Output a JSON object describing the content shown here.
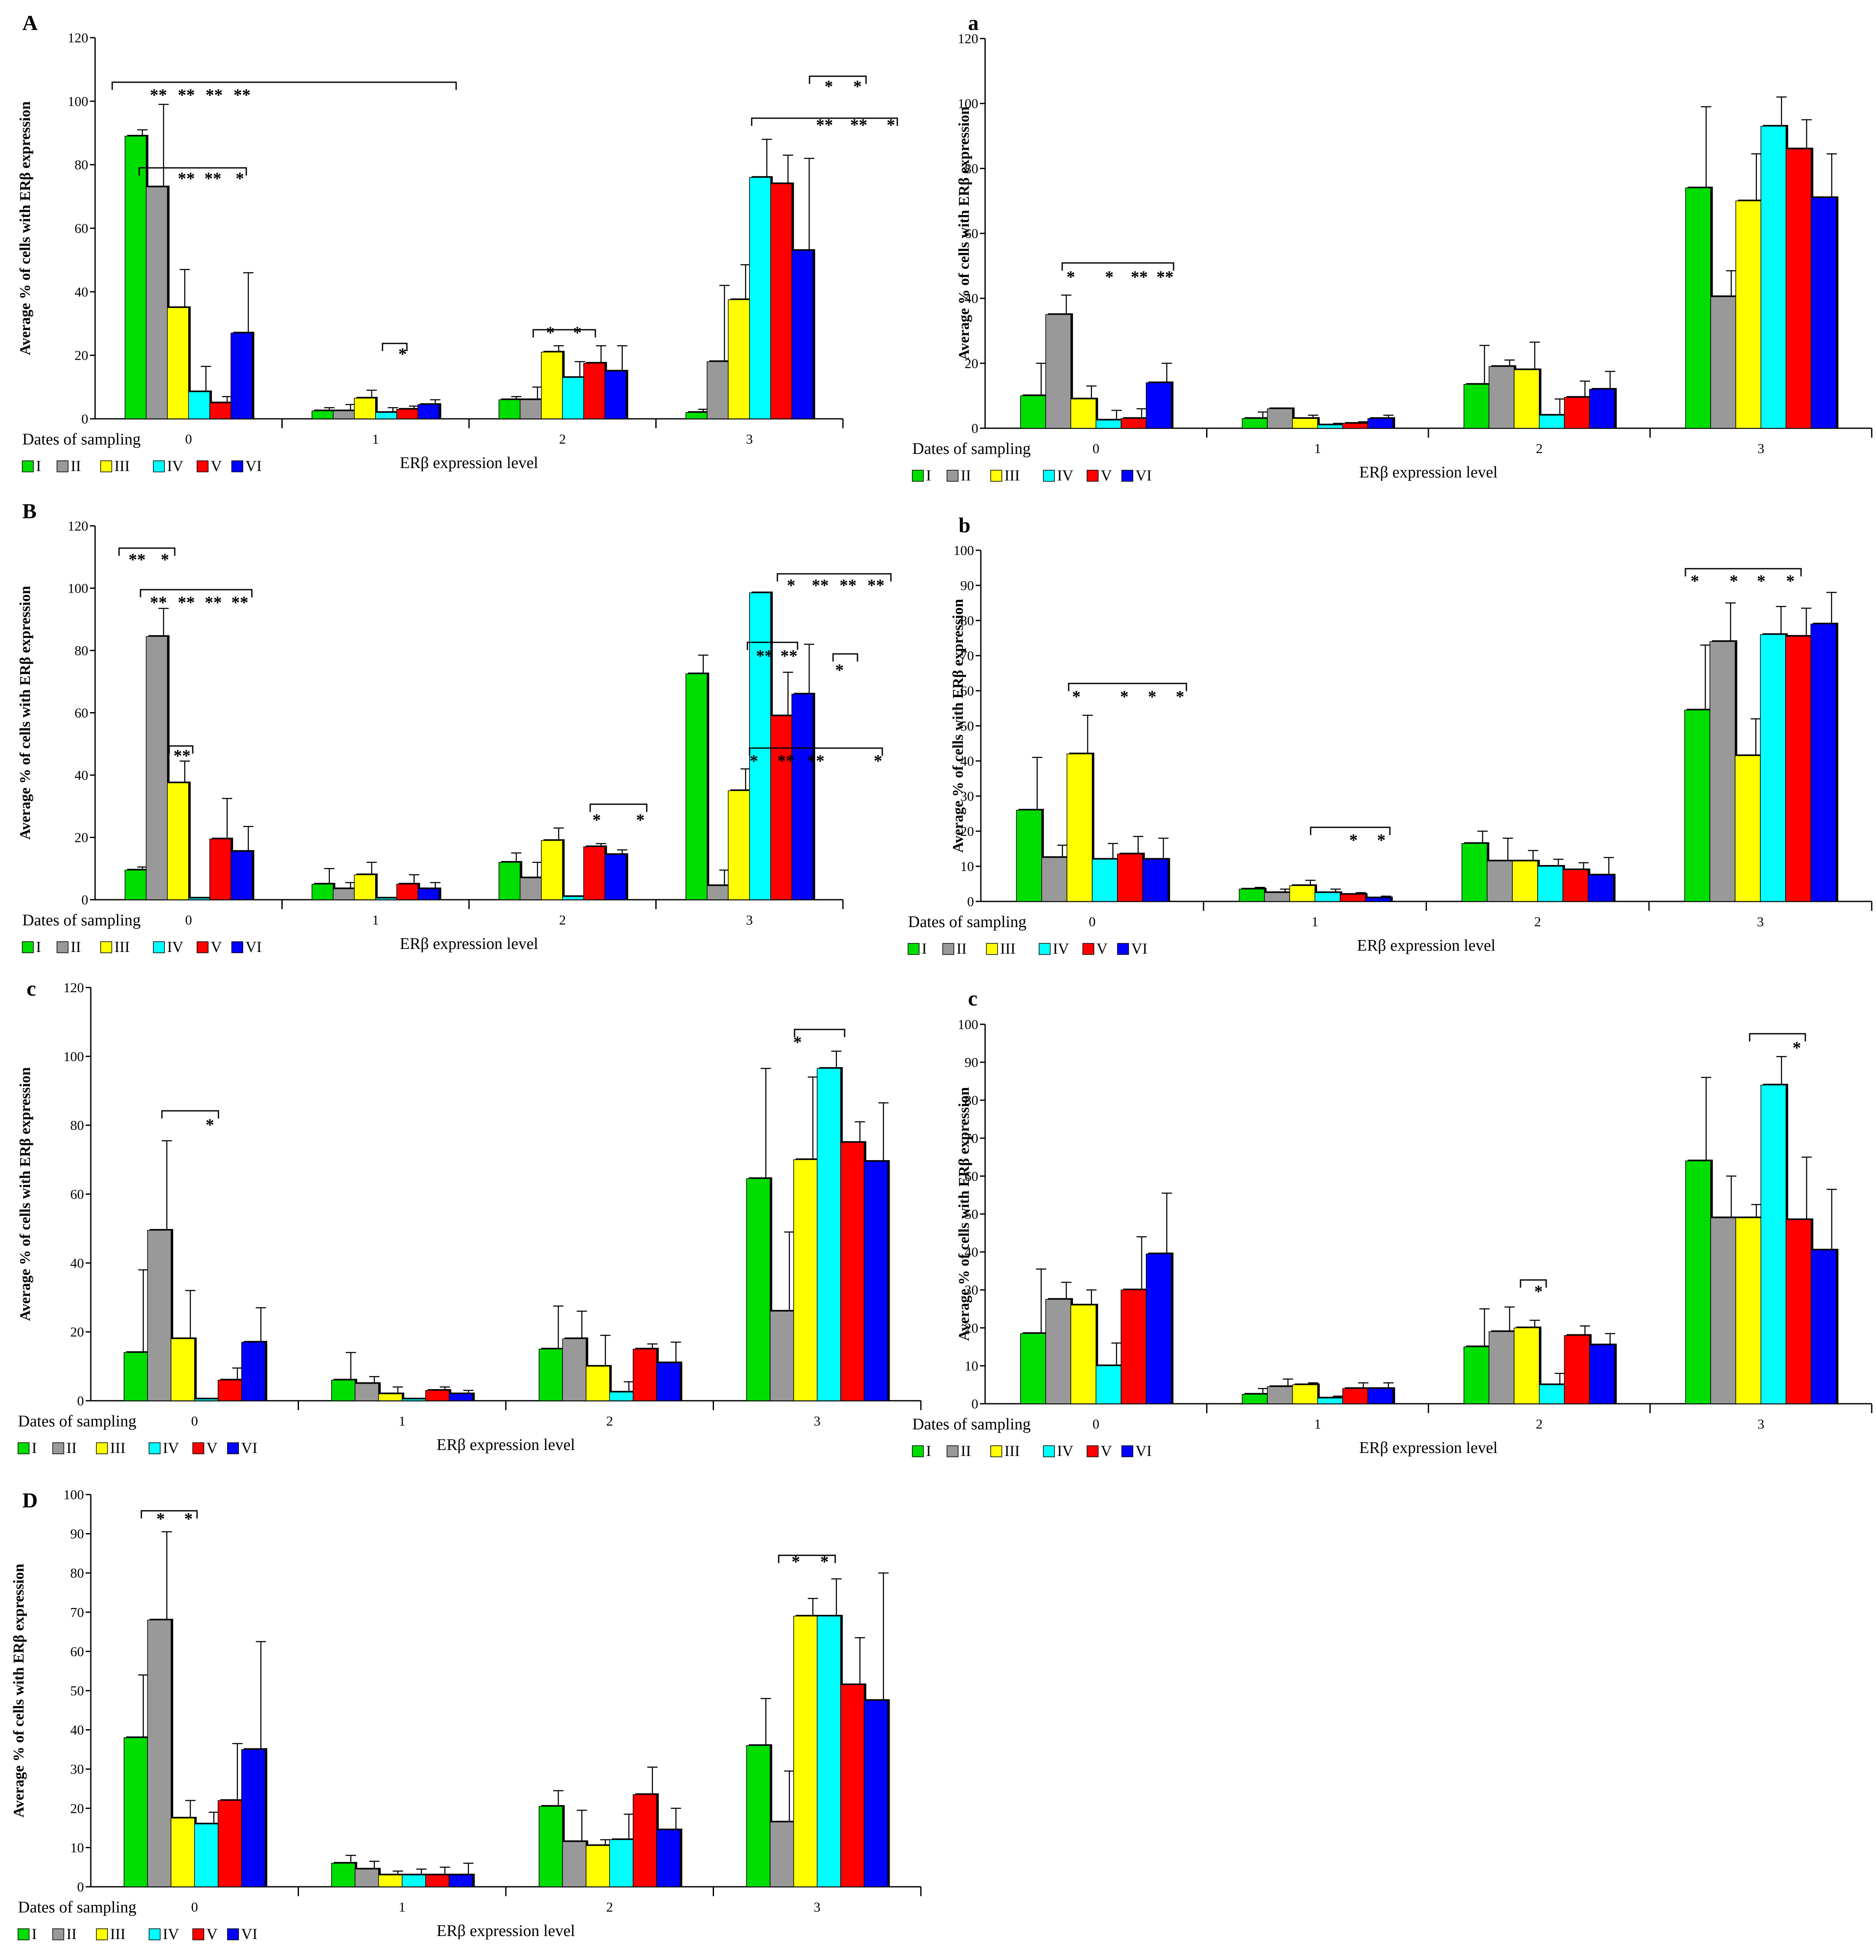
{
  "chart_data": [
    {
      "panel": "A",
      "type": "bar",
      "ylabel": "Average % of cells with ERβ expression",
      "xlabel": "ERβ expression level",
      "x_group_label": "Dates of sampling",
      "categories": [
        "0",
        "1",
        "2",
        "3"
      ],
      "ylim": [
        0,
        120
      ],
      "yticks": [
        0,
        20,
        40,
        60,
        80,
        100,
        120
      ],
      "series": [
        {
          "name": "I",
          "color": "#00dd00",
          "values": [
            89,
            2.5,
            6,
            2
          ],
          "errors": [
            2,
            1,
            1,
            1
          ]
        },
        {
          "name": "II",
          "color": "#999999",
          "values": [
            73,
            2.5,
            6,
            18
          ],
          "errors": [
            26,
            2,
            4,
            24
          ]
        },
        {
          "name": "III",
          "color": "#ffff00",
          "values": [
            35,
            6.5,
            21,
            37.5
          ],
          "errors": [
            12,
            2.5,
            2,
            11
          ]
        },
        {
          "name": "IV",
          "color": "#00ffff",
          "values": [
            8.5,
            2,
            13,
            76
          ],
          "errors": [
            8,
            1.5,
            5,
            12
          ]
        },
        {
          "name": "V",
          "color": "#ff0000",
          "values": [
            5,
            3,
            17.5,
            74
          ],
          "errors": [
            2,
            1,
            5.5,
            9
          ]
        },
        {
          "name": "VI",
          "color": "#0000ff",
          "values": [
            27,
            4.5,
            15,
            53
          ],
          "errors": [
            19,
            1.5,
            8,
            29
          ]
        }
      ],
      "annotations": [
        {
          "text": "** ** ** **"
        },
        {
          "text": "** ** *"
        },
        {
          "text": "*"
        },
        {
          "text": "* *"
        },
        {
          "text": "* *"
        },
        {
          "text": "** ** *"
        }
      ]
    },
    {
      "panel": "a",
      "type": "bar",
      "ylabel": "Average % of cells with ERβ expression",
      "xlabel": "ERβ expression level",
      "x_group_label": "Dates of sampling",
      "categories": [
        "0",
        "1",
        "2",
        "3"
      ],
      "ylim": [
        0,
        120
      ],
      "yticks": [
        0,
        20,
        40,
        60,
        80,
        100,
        120
      ],
      "series": [
        {
          "name": "I",
          "color": "#00dd00",
          "values": [
            10,
            3,
            13.5,
            74
          ],
          "errors": [
            10,
            2,
            12,
            25
          ]
        },
        {
          "name": "II",
          "color": "#999999",
          "values": [
            35,
            6,
            19,
            40.5
          ],
          "errors": [
            6,
            0,
            2,
            8
          ]
        },
        {
          "name": "III",
          "color": "#ffff00",
          "values": [
            9,
            3,
            18,
            70
          ],
          "errors": [
            4,
            1,
            8.5,
            14.5
          ]
        },
        {
          "name": "IV",
          "color": "#00ffff",
          "values": [
            2.5,
            1,
            4,
            93
          ],
          "errors": [
            3,
            0.5,
            5,
            9
          ]
        },
        {
          "name": "V",
          "color": "#ff0000",
          "values": [
            3,
            1.5,
            9.5,
            86
          ],
          "errors": [
            3,
            0.5,
            5,
            9
          ]
        },
        {
          "name": "VI",
          "color": "#0000ff",
          "values": [
            14,
            3,
            12,
            71
          ],
          "errors": [
            6,
            1,
            5.5,
            13.5
          ]
        }
      ],
      "annotations": [
        {
          "text": "* * ** **"
        }
      ]
    },
    {
      "panel": "B",
      "type": "bar",
      "ylabel": "Average % of cells with ERβ expression",
      "xlabel": "ERβ expression level",
      "x_group_label": "Dates of sampling",
      "categories": [
        "0",
        "1",
        "2",
        "3"
      ],
      "ylim": [
        0,
        120
      ],
      "yticks": [
        0,
        20,
        40,
        60,
        80,
        100,
        120
      ],
      "series": [
        {
          "name": "I",
          "color": "#00dd00",
          "values": [
            9.5,
            5,
            12,
            72.5
          ],
          "errors": [
            1,
            5,
            3,
            6
          ]
        },
        {
          "name": "II",
          "color": "#999999",
          "values": [
            84.5,
            3.5,
            7,
            4.5
          ],
          "errors": [
            9,
            2,
            5,
            5
          ]
        },
        {
          "name": "III",
          "color": "#ffff00",
          "values": [
            37.5,
            8,
            19,
            35
          ],
          "errors": [
            7,
            4,
            4,
            7
          ]
        },
        {
          "name": "IV",
          "color": "#00ffff",
          "values": [
            0.5,
            0.5,
            1,
            98.5
          ],
          "errors": [
            0,
            0,
            0,
            0
          ]
        },
        {
          "name": "V",
          "color": "#ff0000",
          "values": [
            19.5,
            5,
            17,
            59
          ],
          "errors": [
            13,
            3,
            1,
            14
          ]
        },
        {
          "name": "VI",
          "color": "#0000ff",
          "values": [
            15.5,
            3.5,
            14.5,
            66
          ],
          "errors": [
            8,
            2,
            1.5,
            16
          ]
        }
      ],
      "annotations": [
        {
          "text": "** *"
        },
        {
          "text": "** ** ** **"
        },
        {
          "text": "**"
        },
        {
          "text": "* *"
        },
        {
          "text": "** **"
        },
        {
          "text": "* ** ** **"
        },
        {
          "text": "*"
        },
        {
          "text": "* ** ** *"
        }
      ]
    },
    {
      "panel": "b",
      "type": "bar",
      "ylabel": "Average % of cells with ERβ expression",
      "xlabel": "ERβ expression level",
      "x_group_label": "Dates of sampling",
      "categories": [
        "0",
        "1",
        "2",
        "3"
      ],
      "ylim": [
        0,
        100
      ],
      "yticks": [
        0,
        10,
        20,
        30,
        40,
        50,
        60,
        70,
        80,
        90,
        100
      ],
      "series": [
        {
          "name": "I",
          "color": "#00dd00",
          "values": [
            26,
            3.5,
            16.5,
            54.5
          ],
          "errors": [
            15,
            0.5,
            3.5,
            18.5
          ]
        },
        {
          "name": "II",
          "color": "#999999",
          "values": [
            12.5,
            2.5,
            11.5,
            74
          ],
          "errors": [
            3.5,
            1,
            6.5,
            11
          ]
        },
        {
          "name": "III",
          "color": "#ffff00",
          "values": [
            42,
            4.5,
            11.5,
            41.5
          ],
          "errors": [
            11,
            1.5,
            3,
            10.5
          ]
        },
        {
          "name": "IV",
          "color": "#00ffff",
          "values": [
            12,
            2.5,
            10,
            76
          ],
          "errors": [
            4.5,
            1,
            2,
            8
          ]
        },
        {
          "name": "V",
          "color": "#ff0000",
          "values": [
            13.5,
            2,
            9,
            75.5
          ],
          "errors": [
            5,
            0.5,
            2,
            8
          ]
        },
        {
          "name": "VI",
          "color": "#0000ff",
          "values": [
            12,
            1,
            7.5,
            79
          ],
          "errors": [
            6,
            0.5,
            5,
            9
          ]
        }
      ],
      "annotations": [
        {
          "text": "* * * *"
        },
        {
          "text": "* *"
        },
        {
          "text": "* * * *"
        }
      ]
    },
    {
      "panel": "c",
      "type": "bar",
      "ylabel": "Average % of cells with ERβ expression",
      "xlabel": "ERβ expression level",
      "x_group_label": "Dates of sampling",
      "categories": [
        "0",
        "1",
        "2",
        "3"
      ],
      "ylim": [
        0,
        120
      ],
      "yticks": [
        0,
        20,
        40,
        60,
        80,
        100,
        120
      ],
      "series": [
        {
          "name": "I",
          "color": "#00dd00",
          "values": [
            14,
            6,
            15,
            64.5
          ],
          "errors": [
            24,
            8,
            12.5,
            32
          ]
        },
        {
          "name": "II",
          "color": "#999999",
          "values": [
            49.5,
            5,
            18,
            26
          ],
          "errors": [
            26,
            2,
            8,
            23
          ]
        },
        {
          "name": "III",
          "color": "#ffff00",
          "values": [
            18,
            2,
            10,
            70
          ],
          "errors": [
            14,
            2,
            9,
            24
          ]
        },
        {
          "name": "IV",
          "color": "#00ffff",
          "values": [
            0.5,
            0.5,
            2.5,
            96.5
          ],
          "errors": [
            0,
            0,
            3,
            5
          ]
        },
        {
          "name": "V",
          "color": "#ff0000",
          "values": [
            6,
            3,
            15,
            75
          ],
          "errors": [
            3.5,
            1,
            1.5,
            6
          ]
        },
        {
          "name": "VI",
          "color": "#0000ff",
          "values": [
            17,
            2,
            11,
            69.5
          ],
          "errors": [
            10,
            1,
            6,
            17
          ]
        }
      ],
      "annotations": [
        {
          "text": "*"
        },
        {
          "text": "*"
        }
      ]
    },
    {
      "panel": "c",
      "type": "bar",
      "ylabel": "Average % of cells with ERβ expression",
      "xlabel": "ERβ expression level",
      "x_group_label": "Dates of sampling",
      "categories": [
        "0",
        "1",
        "2",
        "3"
      ],
      "ylim": [
        0,
        100
      ],
      "yticks": [
        0,
        10,
        20,
        30,
        40,
        50,
        60,
        70,
        80,
        90,
        100
      ],
      "series": [
        {
          "name": "I",
          "color": "#00dd00",
          "values": [
            18.5,
            2.5,
            15,
            64
          ],
          "errors": [
            17,
            1.5,
            10,
            22
          ]
        },
        {
          "name": "II",
          "color": "#999999",
          "values": [
            27.5,
            4.5,
            19,
            49
          ],
          "errors": [
            4.5,
            2,
            6.5,
            11
          ]
        },
        {
          "name": "III",
          "color": "#ffff00",
          "values": [
            26,
            5,
            20,
            49
          ],
          "errors": [
            4,
            0.5,
            2,
            3.5
          ]
        },
        {
          "name": "IV",
          "color": "#00ffff",
          "values": [
            10,
            1.5,
            5,
            84
          ],
          "errors": [
            6,
            0.5,
            3,
            7.5
          ]
        },
        {
          "name": "V",
          "color": "#ff0000",
          "values": [
            30,
            4,
            18,
            48.5
          ],
          "errors": [
            14,
            1.5,
            2.5,
            16.5
          ]
        },
        {
          "name": "VI",
          "color": "#0000ff",
          "values": [
            39.5,
            4,
            15.5,
            40.5
          ],
          "errors": [
            16,
            1.5,
            3,
            16
          ]
        }
      ],
      "annotations": [
        {
          "text": "*"
        },
        {
          "text": "*"
        }
      ]
    },
    {
      "panel": "D",
      "type": "bar",
      "ylabel": "Average % of cells with ERβ expression",
      "xlabel": "ERβ expression level",
      "x_group_label": "Dates of sampling",
      "categories": [
        "0",
        "1",
        "2",
        "3"
      ],
      "ylim": [
        0,
        100
      ],
      "yticks": [
        0,
        10,
        20,
        30,
        40,
        50,
        60,
        70,
        80,
        90,
        100
      ],
      "series": [
        {
          "name": "I",
          "color": "#00dd00",
          "values": [
            38,
            6,
            20.5,
            36
          ],
          "errors": [
            16,
            2,
            4,
            12
          ]
        },
        {
          "name": "II",
          "color": "#999999",
          "values": [
            68,
            4.5,
            11.5,
            16.5
          ],
          "errors": [
            22.5,
            2,
            8,
            13
          ]
        },
        {
          "name": "III",
          "color": "#ffff00",
          "values": [
            17.5,
            3,
            10.5,
            69
          ],
          "errors": [
            4.5,
            1,
            1.5,
            4.5
          ]
        },
        {
          "name": "IV",
          "color": "#00ffff",
          "values": [
            16,
            3,
            12,
            69
          ],
          "errors": [
            3,
            1.5,
            6.5,
            9.5
          ]
        },
        {
          "name": "V",
          "color": "#ff0000",
          "values": [
            22,
            3,
            23.5,
            51.5
          ],
          "errors": [
            14.5,
            2,
            7,
            12
          ]
        },
        {
          "name": "VI",
          "color": "#0000ff",
          "values": [
            35,
            3,
            14.5,
            47.5
          ],
          "errors": [
            27.5,
            3,
            5.5,
            32.5
          ]
        }
      ],
      "annotations": [
        {
          "text": "* *"
        },
        {
          "text": "* *"
        }
      ]
    }
  ]
}
